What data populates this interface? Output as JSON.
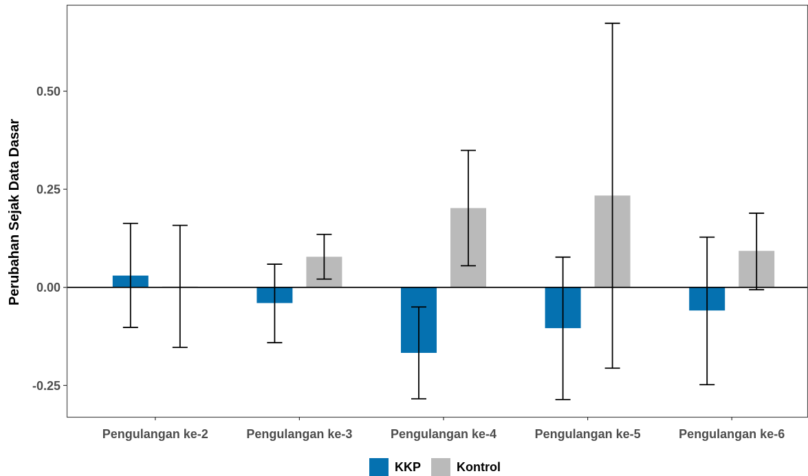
{
  "chart_data": {
    "type": "bar",
    "title": "",
    "xlabel": "",
    "ylabel": "Perubahan Sejak Data Dasar",
    "categories": [
      "Pengulangan ke-2",
      "Pengulangan ke-3",
      "Pengulangan ke-4",
      "Pengulangan ke-5",
      "Pengulangan ke-6"
    ],
    "series": [
      {
        "name": "KKP",
        "color": "#0571b0",
        "values": [
          0.03,
          -0.04,
          -0.167,
          -0.104,
          -0.059
        ],
        "error_low": [
          -0.102,
          -0.141,
          -0.284,
          -0.286,
          -0.248
        ],
        "error_high": [
          0.163,
          0.059,
          -0.05,
          0.077,
          0.128
        ]
      },
      {
        "name": "Kontrol",
        "color": "#bababa",
        "values": [
          0.002,
          0.078,
          0.202,
          0.234,
          0.093
        ],
        "error_low": [
          -0.153,
          0.021,
          0.055,
          -0.206,
          -0.006
        ],
        "error_high": [
          0.158,
          0.135,
          0.349,
          0.673,
          0.189
        ]
      }
    ],
    "ylim": [
      -0.33,
      0.72
    ],
    "yticks": [
      -0.25,
      0.0,
      0.25,
      0.5
    ],
    "ytick_labels": [
      "-0.25",
      "0.00",
      "0.25",
      "0.50"
    ],
    "grid": false,
    "zero_line": true,
    "legend": {
      "position": "bottom",
      "entries": [
        "KKP",
        "Kontrol"
      ]
    }
  }
}
